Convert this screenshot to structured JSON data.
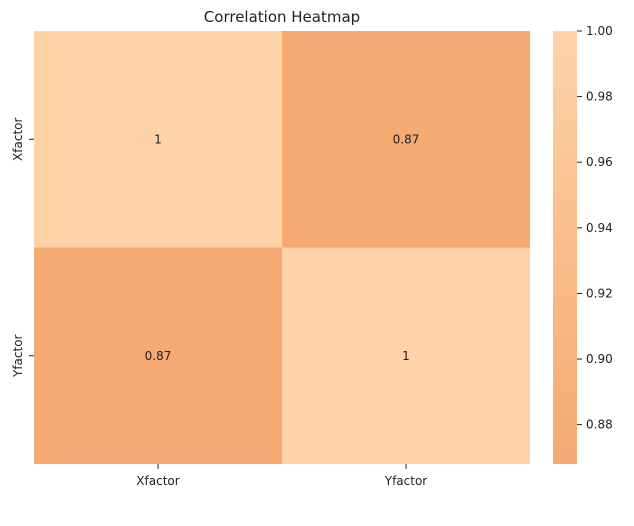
{
  "chart_data": {
    "type": "heatmap",
    "title": "Correlation Heatmap",
    "xlabel": "",
    "ylabel": "",
    "x_categories": [
      "Xfactor",
      "Yfactor"
    ],
    "y_categories": [
      "Xfactor",
      "Yfactor"
    ],
    "values": [
      [
        1,
        0.87
      ],
      [
        0.87,
        1
      ]
    ],
    "cell_labels": [
      [
        "1",
        "0.87"
      ],
      [
        "0.87",
        "1"
      ]
    ],
    "colorbar": {
      "range": [
        0.868,
        1.0
      ],
      "ticks": [
        0.88,
        0.9,
        0.92,
        0.94,
        0.96,
        0.98,
        1.0
      ],
      "tick_labels": [
        "0.88",
        "0.90",
        "0.92",
        "0.94",
        "0.96",
        "0.98",
        "1.00"
      ],
      "color_low": "#F4A971",
      "color_high": "#FED3A8"
    },
    "grid": false
  }
}
